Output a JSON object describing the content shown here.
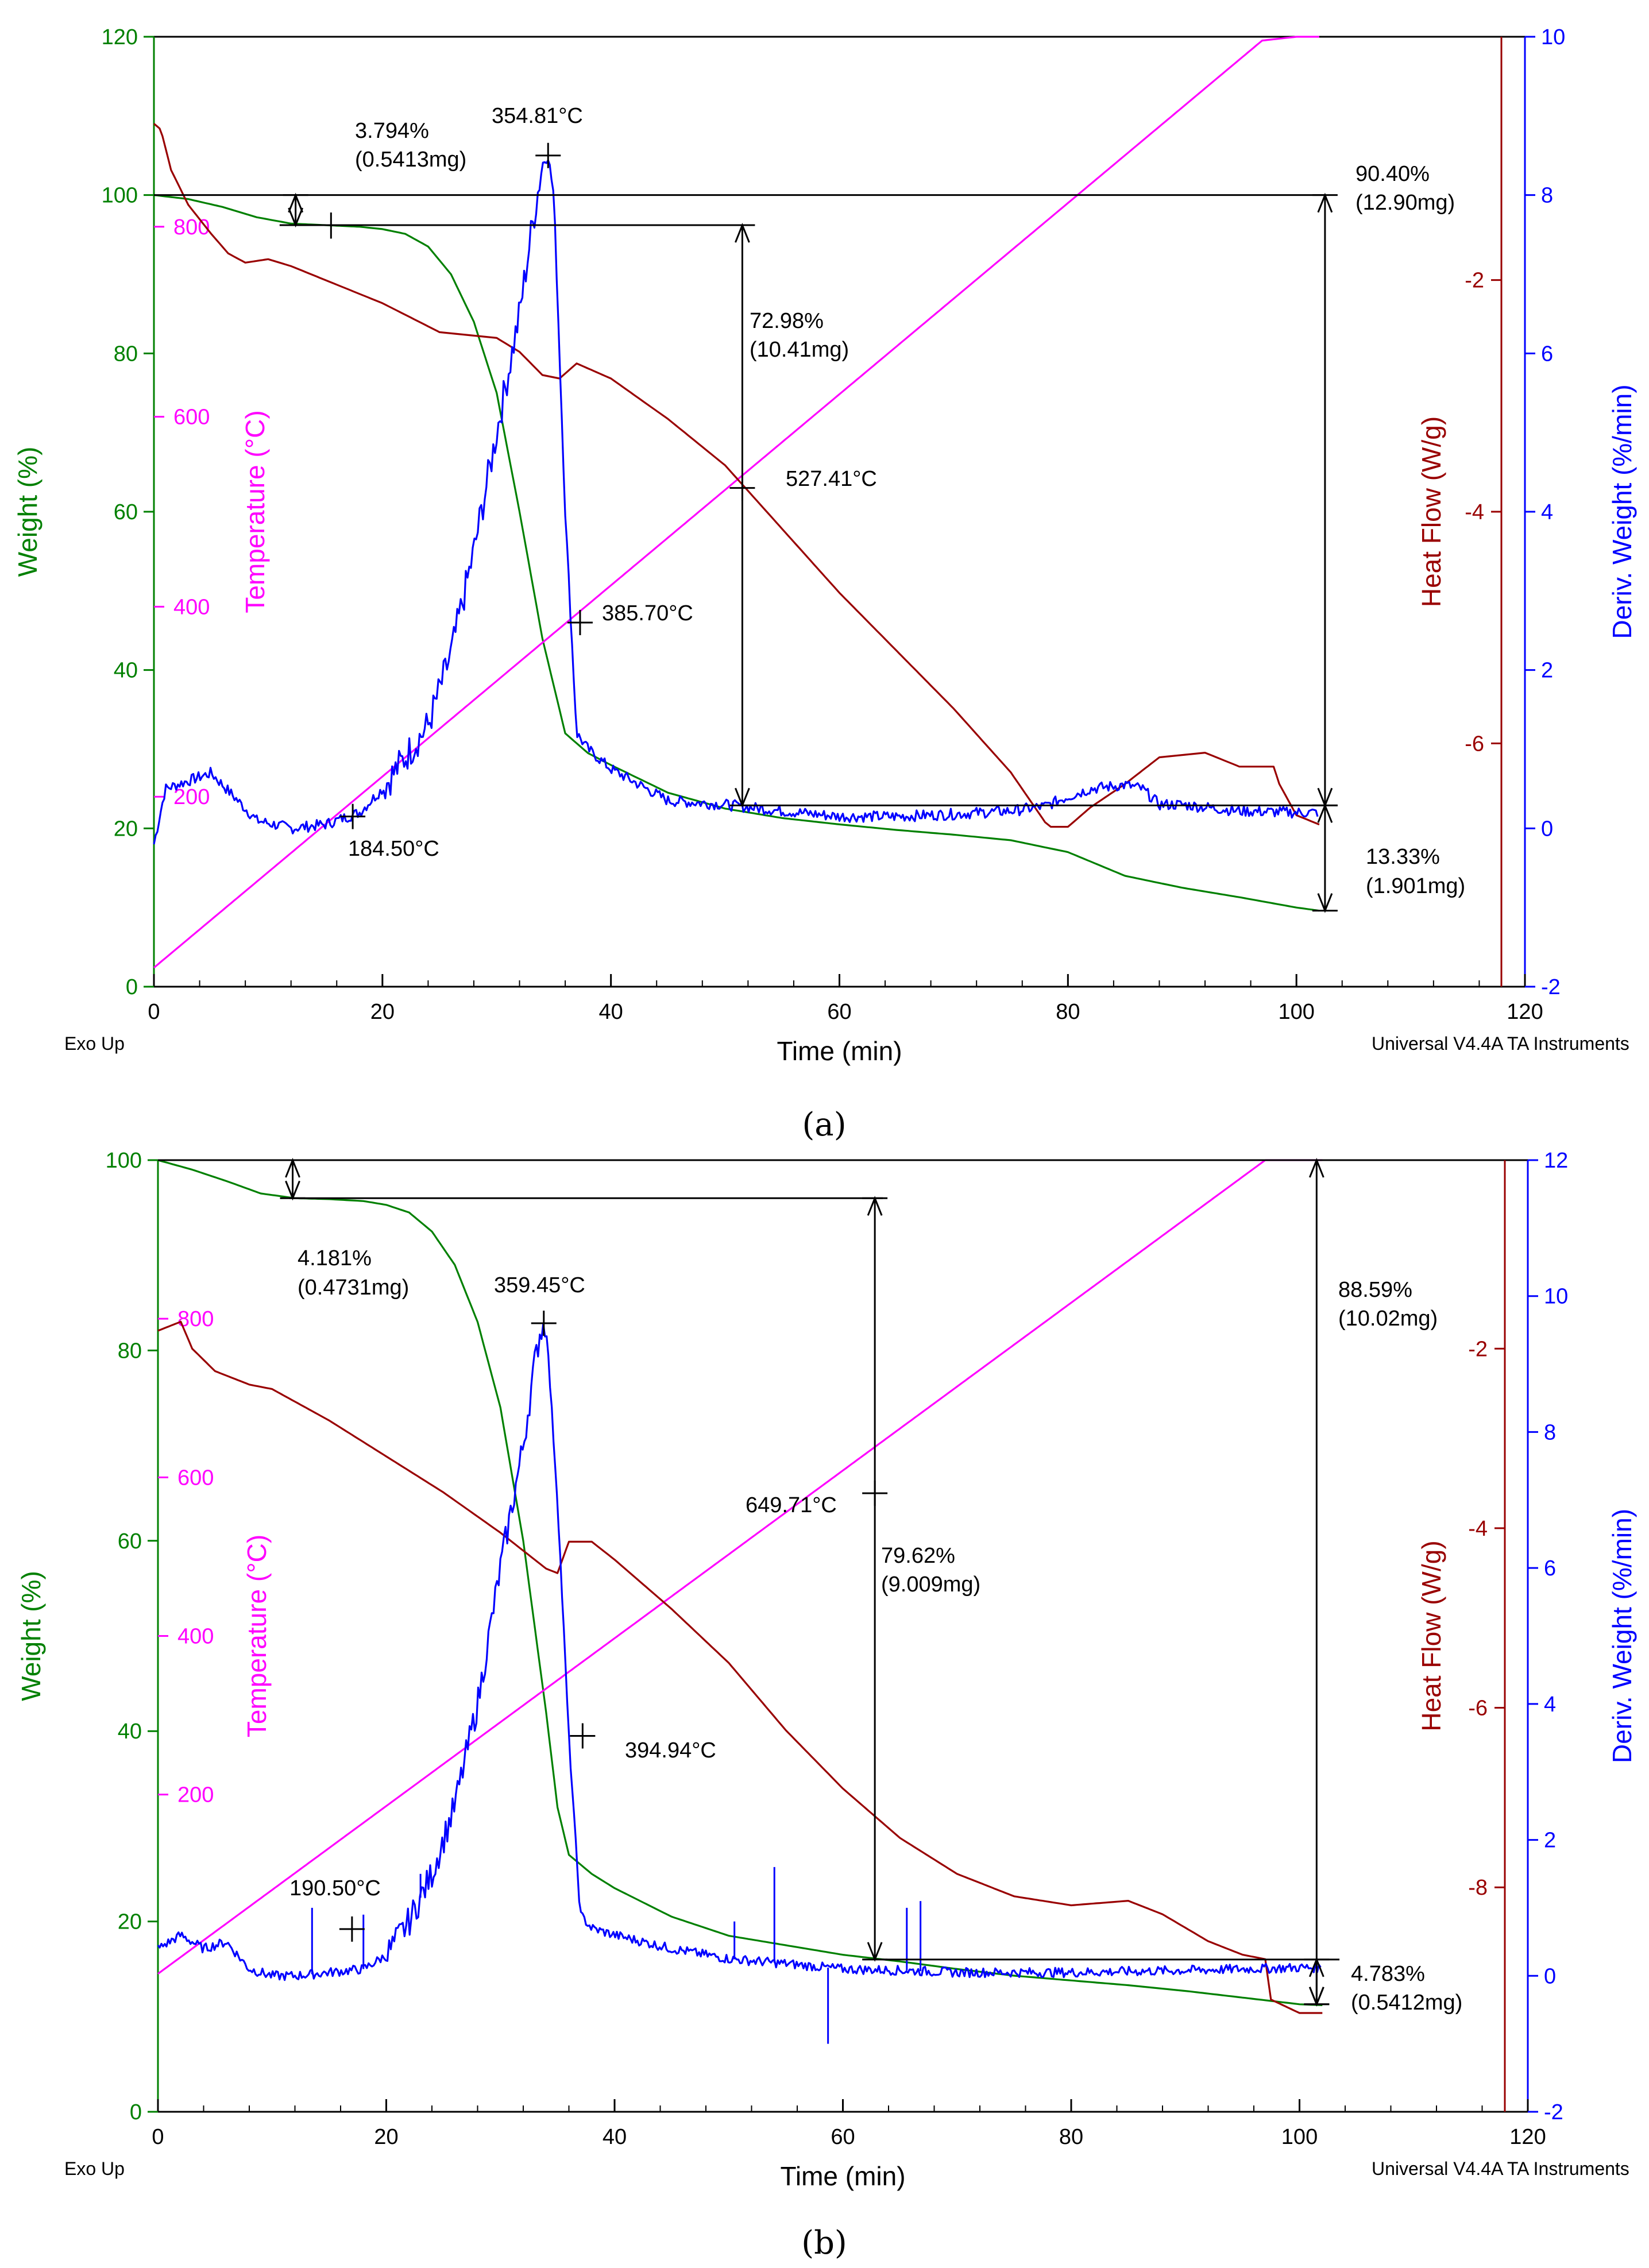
{
  "colors": {
    "weight": "#008000",
    "temperature": "#ff00ff",
    "heat_flow": "#990000",
    "deriv_weight": "#0000ff",
    "annotation": "#000000"
  },
  "footer": {
    "left": "Exo Up",
    "right": "Universal V4.4A TA Instruments"
  },
  "chart_data": [
    {
      "panel": "a",
      "caption": "(a)",
      "type": "line",
      "xlabel": "Time (min)",
      "xlim": [
        0,
        120
      ],
      "xticks": [
        "0",
        "20",
        "40",
        "60",
        "80",
        "100",
        "120"
      ],
      "axes": {
        "weight": {
          "label": "Weight (%)",
          "lim": [
            0,
            120
          ],
          "ticks": [
            "0",
            "20",
            "40",
            "60",
            "80",
            "100",
            "120"
          ]
        },
        "temperature": {
          "label": "Temperature (°C)",
          "lim": [
            0,
            1000
          ],
          "ticks": [
            "200",
            "400",
            "600",
            "800"
          ]
        },
        "heat_flow": {
          "label": "Heat Flow (W/g)",
          "lim": [
            -8.1,
            0.1
          ],
          "ticks": [
            "-6",
            "-4",
            "-2"
          ]
        },
        "deriv_weight": {
          "label": "Deriv. Weight (%/min)",
          "lim": [
            -2,
            10
          ],
          "ticks": [
            "-2",
            "0",
            "2",
            "4",
            "6",
            "8",
            "10"
          ]
        }
      },
      "series": [
        {
          "name": "Weight",
          "axis": "weight",
          "x": [
            0,
            3,
            6,
            9,
            12,
            15,
            18,
            20,
            22,
            24,
            26,
            28,
            30,
            32,
            34,
            36,
            38,
            40,
            45,
            50,
            55,
            60,
            65,
            70,
            75,
            80,
            85,
            90,
            95,
            100,
            102
          ],
          "y": [
            100,
            99.5,
            98.5,
            97.2,
            96.4,
            96.2,
            96.0,
            95.7,
            95.1,
            93.5,
            90,
            84,
            75,
            60,
            44,
            32,
            29.5,
            28,
            24.5,
            22.5,
            21.3,
            20.5,
            19.8,
            19.2,
            18.5,
            17,
            14,
            12.5,
            11.3,
            10,
            9.6
          ]
        },
        {
          "name": "Temperature",
          "axis": "temperature",
          "x": [
            0,
            97,
            100,
            102
          ],
          "y": [
            20,
            996,
            1000,
            1000
          ]
        },
        {
          "name": "Heat Flow",
          "axis": "heat_flow",
          "x": [
            0,
            0.6,
            1.5,
            3,
            5,
            6.5,
            8,
            10,
            12,
            15,
            20,
            25,
            30,
            32,
            34,
            35.5,
            37,
            40,
            45,
            50,
            55,
            60,
            65,
            70,
            75,
            78,
            78.5,
            80,
            82,
            85,
            88,
            90,
            92,
            95,
            98,
            98.5,
            100,
            102
          ],
          "y": [
            -0.65,
            -0.7,
            -1.05,
            -1.35,
            -1.6,
            -1.77,
            -1.85,
            -1.82,
            -1.88,
            -2,
            -2.2,
            -2.45,
            -2.5,
            -2.62,
            -2.82,
            -2.85,
            -2.72,
            -2.85,
            -3.2,
            -3.6,
            -4.15,
            -4.7,
            -5.2,
            -5.7,
            -6.25,
            -6.68,
            -6.72,
            -6.72,
            -6.55,
            -6.35,
            -6.12,
            -6.1,
            -6.08,
            -6.2,
            -6.2,
            -6.35,
            -6.62,
            -6.7
          ]
        },
        {
          "name": "Deriv. Weight",
          "axis": "deriv_weight",
          "x": [
            0,
            1,
            2,
            3,
            5,
            7,
            9,
            12,
            15,
            18,
            20,
            22,
            24,
            26,
            28,
            30,
            32,
            33,
            34,
            34.5,
            35,
            36,
            37,
            38,
            40,
            45,
            50,
            55,
            60,
            65,
            70,
            75,
            78,
            80,
            82,
            85,
            86.5,
            88,
            90,
            95,
            100,
            102
          ],
          "y": [
            -0.2,
            0.5,
            0.55,
            0.6,
            0.7,
            0.4,
            0.1,
            0,
            0.05,
            0.2,
            0.5,
            0.9,
            1.3,
            2.2,
            3.5,
            5.0,
            6.5,
            7.5,
            8.4,
            8.5,
            8.0,
            4.0,
            1.2,
            1.0,
            0.75,
            0.35,
            0.3,
            0.22,
            0.15,
            0.15,
            0.18,
            0.22,
            0.28,
            0.4,
            0.5,
            0.55,
            0.5,
            0.3,
            0.3,
            0.22,
            0.2,
            0.2
          ]
        }
      ],
      "annotations": [
        {
          "text1": "3.794%",
          "text2": "(0.5413mg)"
        },
        {
          "text1": "354.81°C"
        },
        {
          "text1": "90.40%",
          "text2": "(12.90mg)"
        },
        {
          "text1": "72.98%",
          "text2": "(10.41mg)"
        },
        {
          "text1": "527.41°C"
        },
        {
          "text1": "385.70°C"
        },
        {
          "text1": "184.50°C"
        },
        {
          "text1": "13.33%",
          "text2": "(1.901mg)"
        }
      ]
    },
    {
      "panel": "b",
      "caption": "(b)",
      "type": "line",
      "xlabel": "Time (min)",
      "xlim": [
        0,
        120
      ],
      "xticks": [
        "0",
        "20",
        "40",
        "60",
        "80",
        "100",
        "120"
      ],
      "axes": {
        "weight": {
          "label": "Weight (%)",
          "lim": [
            0,
            100
          ],
          "ticks": [
            "0",
            "20",
            "40",
            "60",
            "80",
            "100"
          ]
        },
        "temperature": {
          "label": "Temperature (°C)",
          "lim": [
            -200,
            1000
          ],
          "ticks": [
            "200",
            "400",
            "600",
            "800"
          ]
        },
        "heat_flow": {
          "label": "Heat Flow (W/g)",
          "lim": [
            -10.5,
            0.1
          ],
          "ticks": [
            "-8",
            "-6",
            "-4",
            "-2"
          ]
        },
        "deriv_weight": {
          "label": "Deriv. Weight (%/min)",
          "lim": [
            -2,
            12
          ],
          "ticks": [
            "-2",
            "0",
            "2",
            "4",
            "6",
            "8",
            "10",
            "12"
          ]
        }
      },
      "series": [
        {
          "name": "Weight",
          "axis": "weight",
          "x": [
            0,
            3,
            6,
            9,
            12,
            15,
            18,
            20,
            22,
            24,
            26,
            28,
            30,
            32,
            34,
            35,
            36,
            38,
            40,
            45,
            50,
            55,
            60,
            65,
            70,
            75,
            80,
            85,
            90,
            95,
            100,
            102
          ],
          "y": [
            100,
            99,
            97.8,
            96.5,
            96,
            95.9,
            95.7,
            95.3,
            94.5,
            92.5,
            89,
            83,
            74,
            60,
            42,
            32,
            27,
            25,
            23.5,
            20.5,
            18.5,
            17.5,
            16.5,
            15.8,
            15,
            14.3,
            13.8,
            13.3,
            12.7,
            12,
            11.3,
            11.2
          ]
        },
        {
          "name": "Temperature",
          "axis": "temperature",
          "x": [
            0,
            97,
            100,
            102
          ],
          "y": [
            -26,
            1000,
            1000,
            1000
          ]
        },
        {
          "name": "Heat Flow",
          "axis": "heat_flow",
          "x": [
            0,
            1,
            2,
            3,
            5,
            8,
            10,
            15,
            20,
            25,
            30,
            32,
            34,
            35,
            36,
            38,
            40,
            45,
            50,
            55,
            60,
            65,
            70,
            75,
            80,
            85,
            88,
            92,
            95,
            97,
            97.5,
            100,
            102
          ],
          "y": [
            -1.8,
            -1.75,
            -1.7,
            -2.0,
            -2.25,
            -2.4,
            -2.45,
            -2.8,
            -3.2,
            -3.6,
            -4.05,
            -4.25,
            -4.45,
            -4.5,
            -4.15,
            -4.15,
            -4.35,
            -4.9,
            -5.5,
            -6.25,
            -6.9,
            -7.45,
            -7.85,
            -8.1,
            -8.2,
            -8.15,
            -8.3,
            -8.6,
            -8.75,
            -8.8,
            -9.25,
            -9.4,
            -9.4
          ]
        },
        {
          "name": "Deriv. Weight",
          "axis": "deriv_weight",
          "x": [
            0,
            2,
            4,
            6,
            8,
            10,
            12,
            15,
            18,
            20,
            22,
            24,
            26,
            28,
            30,
            32,
            33,
            33.5,
            34,
            35,
            36,
            37,
            38,
            40,
            45,
            50,
            55,
            60,
            65,
            70,
            80,
            90,
            100,
            102
          ],
          "y": [
            0.4,
            0.6,
            0.4,
            0.5,
            0.1,
            0,
            0,
            0.05,
            0.1,
            0.3,
            0.8,
            1.5,
            2.5,
            4.0,
            6.0,
            7.8,
            9.0,
            9.5,
            9.6,
            7.0,
            3.5,
            0.9,
            0.7,
            0.6,
            0.4,
            0.25,
            0.18,
            0.1,
            0.08,
            0.05,
            0.05,
            0.08,
            0.12,
            0.12
          ]
        }
      ],
      "annotations": [
        {
          "text1": "4.181%",
          "text2": "(0.4731mg)"
        },
        {
          "text1": "359.45°C"
        },
        {
          "text1": "88.59%",
          "text2": "(10.02mg)"
        },
        {
          "text1": "649.71°C"
        },
        {
          "text1": "79.62%",
          "text2": "(9.009mg)"
        },
        {
          "text1": "394.94°C"
        },
        {
          "text1": "190.50°C"
        },
        {
          "text1": "4.783%",
          "text2": "(0.5412mg)"
        }
      ]
    }
  ]
}
